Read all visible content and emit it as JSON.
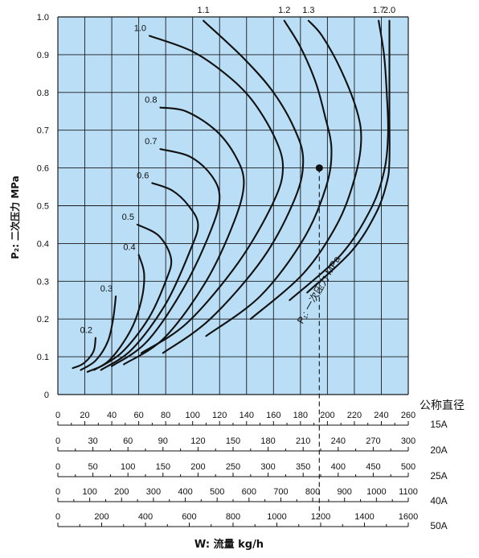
{
  "chart_data": {
    "type": "line",
    "ylabel": "P₂: 二次压力 MPa",
    "xlabel": "W: 流量 kg/h",
    "ylim": [
      0,
      1.0
    ],
    "y_ticks": [
      "0",
      "0.1",
      "0.2",
      "0.3",
      "0.4",
      "0.5",
      "0.6",
      "0.7",
      "0.8",
      "0.9",
      "1.0"
    ],
    "xlim": [
      0,
      260
    ],
    "grid": true,
    "scale_header": "公称直径",
    "scales": [
      {
        "size": "15A",
        "max": 260,
        "ticks": [
          "0",
          "20",
          "40",
          "60",
          "80",
          "100",
          "120",
          "140",
          "160",
          "180",
          "200",
          "220",
          "240",
          "260"
        ]
      },
      {
        "size": "20A",
        "max": 300,
        "ticks": [
          "0",
          "30",
          "60",
          "90",
          "120",
          "150",
          "180",
          "210",
          "240",
          "270",
          "300"
        ]
      },
      {
        "size": "25A",
        "max": 500,
        "ticks": [
          "0",
          "50",
          "100",
          "150",
          "200",
          "250",
          "300",
          "350",
          "400",
          "450",
          "500"
        ]
      },
      {
        "size": "40A",
        "max": 1100,
        "ticks": [
          "0",
          "100",
          "200",
          "300",
          "400",
          "500",
          "600",
          "700",
          "800",
          "900",
          "1000",
          "1100"
        ]
      },
      {
        "size": "50A",
        "max": 1600,
        "ticks": [
          "0",
          "200",
          "400",
          "600",
          "800",
          "1000",
          "1200",
          "1400",
          "1600"
        ]
      }
    ],
    "curve_family_label": "P₁: 一次压力 MPa",
    "series": [
      {
        "name": "0.2",
        "x": [
          11,
          18,
          24,
          27,
          28
        ],
        "y": [
          0.07,
          0.08,
          0.1,
          0.12,
          0.15
        ]
      },
      {
        "name": "0.3",
        "x": [
          17,
          28,
          37,
          41,
          43
        ],
        "y": [
          0.065,
          0.09,
          0.14,
          0.2,
          0.26
        ]
      },
      {
        "name": "0.4",
        "x": [
          22,
          38,
          54,
          62,
          64,
          60
        ],
        "y": [
          0.06,
          0.09,
          0.17,
          0.25,
          0.32,
          0.37
        ]
      },
      {
        "name": "0.5",
        "x": [
          27,
          47,
          67,
          80,
          84,
          75,
          59
        ],
        "y": [
          0.065,
          0.11,
          0.2,
          0.3,
          0.36,
          0.42,
          0.45
        ]
      },
      {
        "name": "0.6",
        "x": [
          32,
          55,
          80,
          98,
          104,
          97,
          85,
          70
        ],
        "y": [
          0.065,
          0.12,
          0.24,
          0.38,
          0.45,
          0.5,
          0.54,
          0.56
        ]
      },
      {
        "name": "0.7",
        "x": [
          40,
          66,
          93,
          113,
          120,
          114,
          98,
          76
        ],
        "y": [
          0.075,
          0.14,
          0.28,
          0.43,
          0.52,
          0.58,
          0.63,
          0.65
        ]
      },
      {
        "name": "0.8",
        "x": [
          49,
          79,
          110,
          131,
          138,
          132,
          117,
          95,
          76
        ],
        "y": [
          0.08,
          0.15,
          0.3,
          0.46,
          0.56,
          0.63,
          0.7,
          0.75,
          0.76
        ]
      },
      {
        "name": "1.0",
        "x": [
          62,
          96,
          134,
          160,
          167,
          161,
          144,
          124,
          99,
          68
        ],
        "y": [
          0.11,
          0.19,
          0.35,
          0.51,
          0.6,
          0.68,
          0.78,
          0.85,
          0.91,
          0.95
        ]
      },
      {
        "name": "1.1",
        "x": [
          78,
          113,
          152,
          176,
          182,
          176,
          160,
          138,
          108
        ],
        "y": [
          0.11,
          0.2,
          0.36,
          0.52,
          0.62,
          0.7,
          0.8,
          0.89,
          0.99
        ]
      },
      {
        "name": "1.2",
        "x": [
          110,
          150,
          182,
          199,
          203,
          198,
          191,
          180,
          168
        ],
        "y": [
          0.155,
          0.26,
          0.41,
          0.55,
          0.65,
          0.74,
          0.83,
          0.92,
          0.99
        ]
      },
      {
        "name": "1.3",
        "x": [
          143,
          182,
          207,
          220,
          225,
          222,
          210,
          196,
          186
        ],
        "y": [
          0.2,
          0.32,
          0.45,
          0.57,
          0.67,
          0.75,
          0.86,
          0.95,
          0.99
        ]
      },
      {
        "name": "1.7",
        "x": [
          172,
          210,
          232,
          242,
          245,
          244,
          242,
          238
        ],
        "y": [
          0.25,
          0.37,
          0.49,
          0.59,
          0.69,
          0.8,
          0.9,
          0.99
        ]
      },
      {
        "name": "2.0",
        "x": [
          185,
          218,
          236,
          244,
          246,
          246,
          246,
          246
        ],
        "y": [
          0.27,
          0.38,
          0.48,
          0.56,
          0.62,
          0.75,
          0.9,
          0.99
        ]
      }
    ],
    "marker": {
      "x": 194,
      "y": 0.6
    }
  }
}
